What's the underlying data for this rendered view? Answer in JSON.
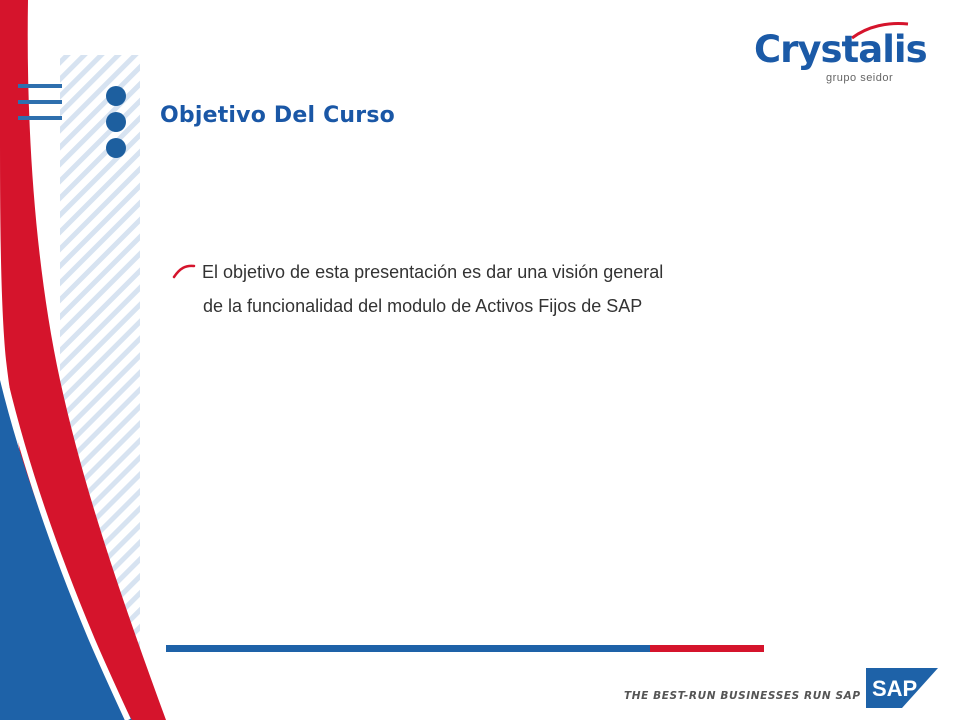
{
  "slide": {
    "title": "Objetivo Del Curso",
    "bullet": {
      "line1": "El objetivo de esta presentación es dar una visión general",
      "line2": "de la funcionalidad del modulo de Activos Fijos de SAP"
    }
  },
  "brand": {
    "logo_main": "Crystalis",
    "logo_sub": "grupo seidor",
    "tagline": "THE BEST-RUN BUSINESSES RUN SAP",
    "sap_logo": "SAP"
  },
  "colors": {
    "blue": "#1e62a8",
    "red": "#d5142c",
    "title_blue": "#1a57a6"
  }
}
